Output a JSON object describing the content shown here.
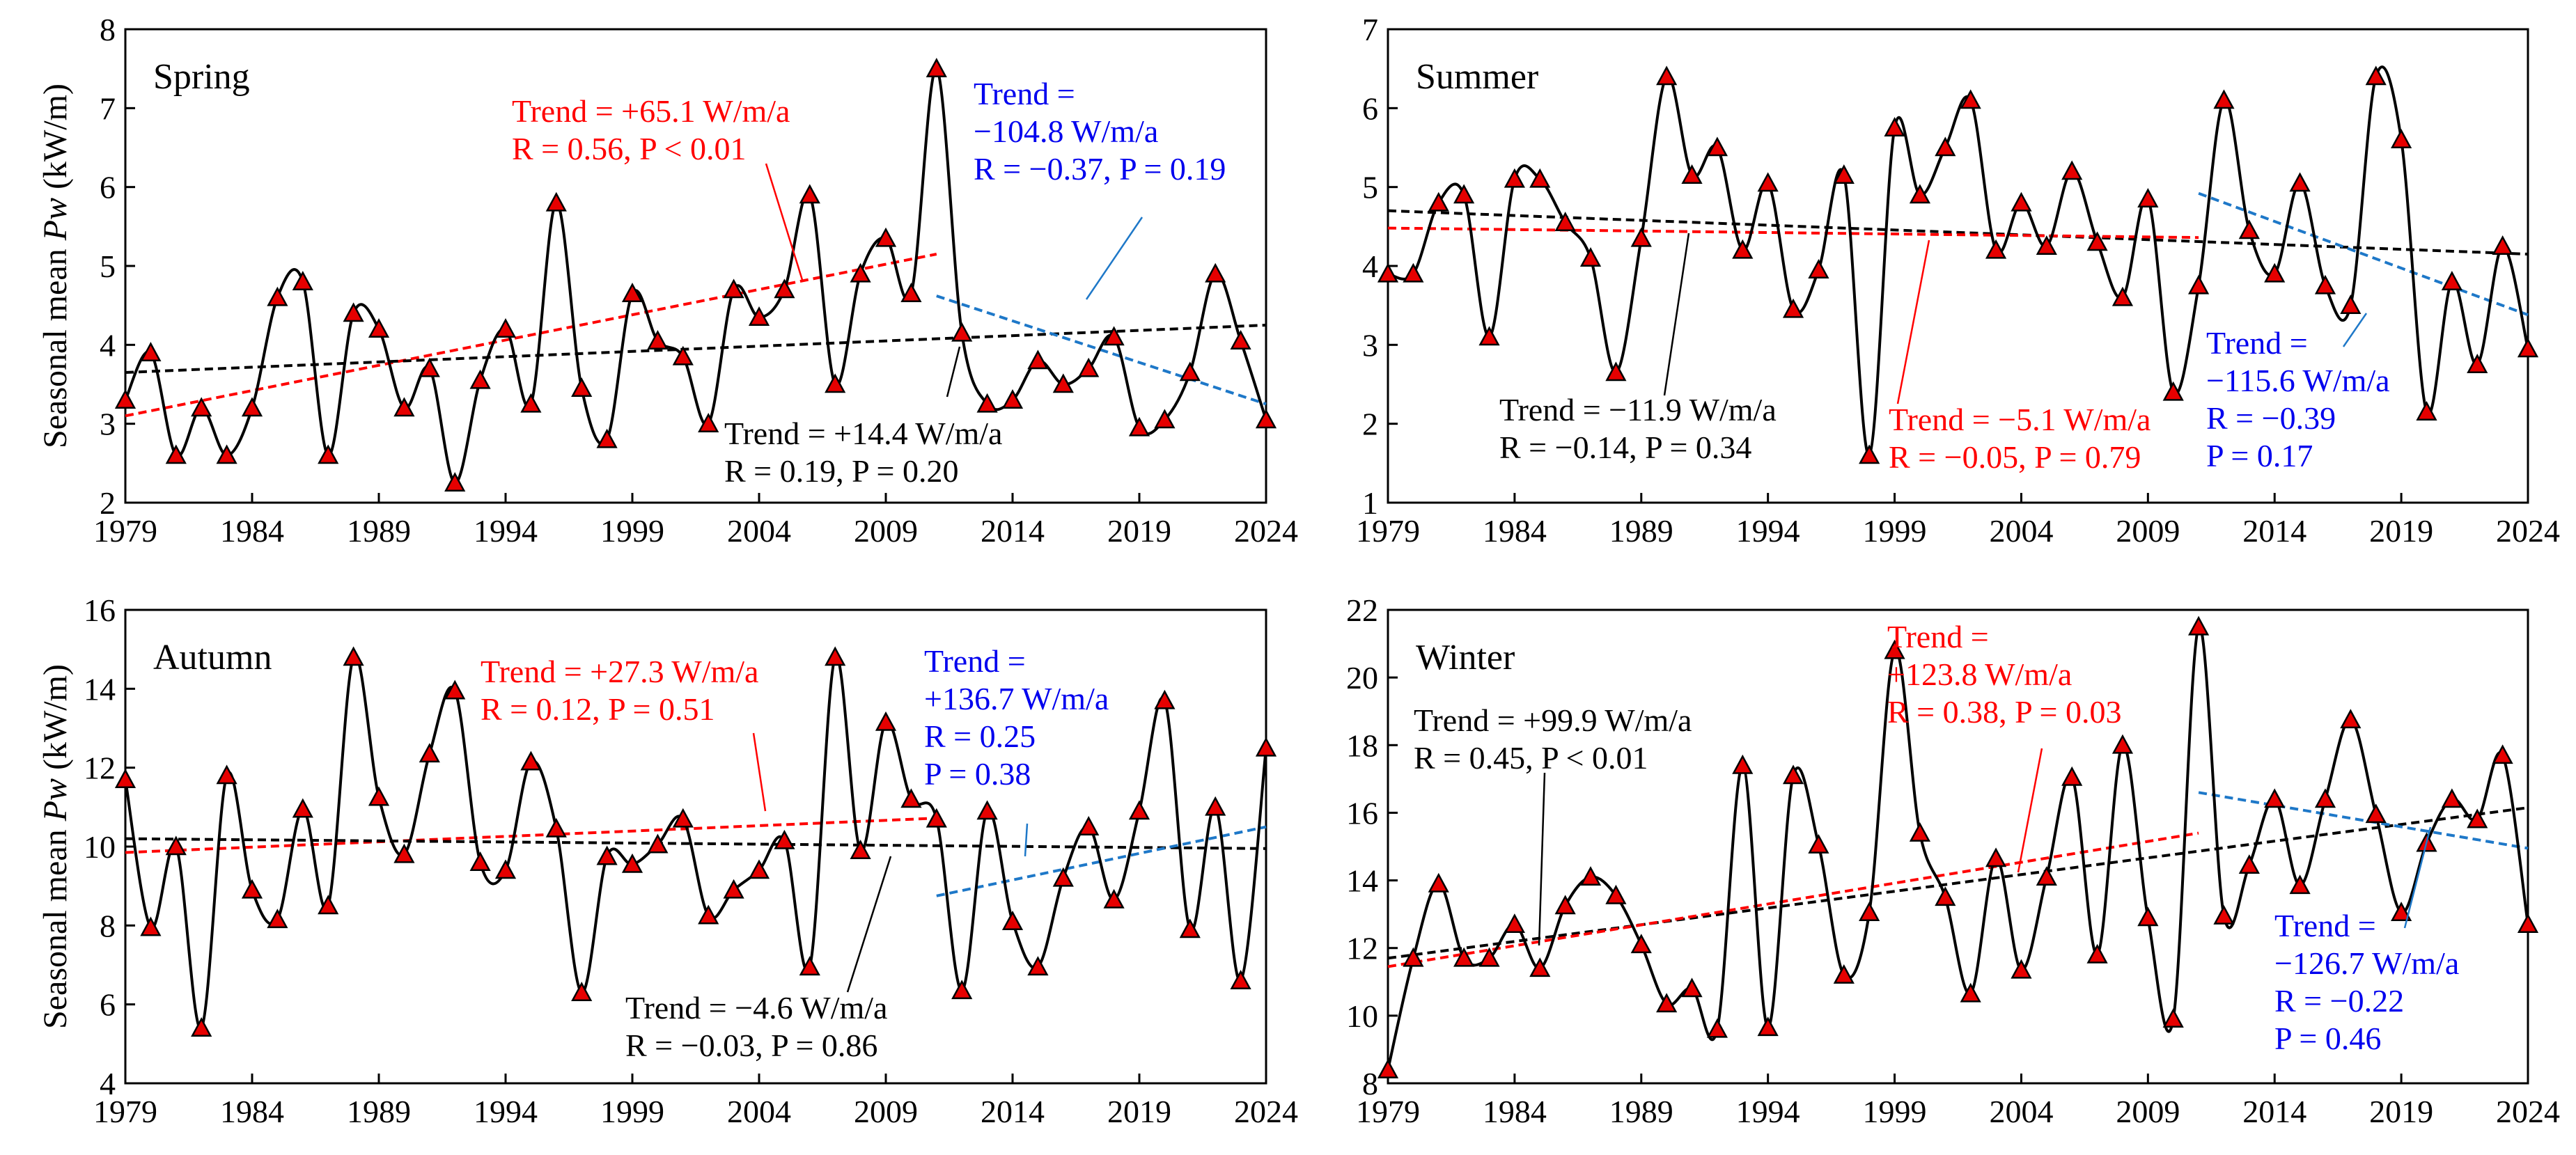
{
  "ylabel_prefix": "Seasonal mean ",
  "ylabel_symbol": "Pw",
  "ylabel_unit": " (kW/m)",
  "colors": {
    "series": "#000000",
    "marker": "#e60000",
    "red": "#ff0000",
    "blue": "#0000ee",
    "blue_line": "#1e78c8",
    "black": "#000000"
  },
  "chart_data": [
    {
      "type": "line",
      "title": "Spring",
      "x": [
        1979,
        1980,
        1981,
        1982,
        1983,
        1984,
        1985,
        1986,
        1987,
        1988,
        1989,
        1990,
        1991,
        1992,
        1993,
        1994,
        1995,
        1996,
        1997,
        1998,
        1999,
        2000,
        2001,
        2002,
        2003,
        2004,
        2005,
        2006,
        2007,
        2008,
        2009,
        2010,
        2011,
        2012,
        2013,
        2014,
        2015,
        2016,
        2017,
        2018,
        2019,
        2020,
        2021,
        2022,
        2023,
        2024
      ],
      "values": [
        3.3,
        3.9,
        2.6,
        3.2,
        2.6,
        3.2,
        4.6,
        4.8,
        2.6,
        4.4,
        4.2,
        3.2,
        3.7,
        2.25,
        3.55,
        4.2,
        3.25,
        5.8,
        3.45,
        2.8,
        4.65,
        4.05,
        3.85,
        3.0,
        4.7,
        4.35,
        4.7,
        5.9,
        3.5,
        4.9,
        5.35,
        4.65,
        7.5,
        4.15,
        3.25,
        3.3,
        3.8,
        3.5,
        3.7,
        4.1,
        2.95,
        3.05,
        3.65,
        4.9,
        4.05,
        3.05
      ],
      "xlim": [
        1979,
        2024
      ],
      "ylim": [
        2,
        8
      ],
      "xticks": [
        "1979",
        "1984",
        "1989",
        "1994",
        "1999",
        "2004",
        "2009",
        "2014",
        "2019",
        "2024"
      ],
      "yticks": [
        "2",
        "3",
        "4",
        "5",
        "6",
        "7",
        "8"
      ],
      "trends": [
        {
          "color": "red",
          "x": [
            1979,
            2011
          ],
          "y": [
            3.1,
            5.15
          ]
        },
        {
          "color": "black",
          "x": [
            1979,
            2024
          ],
          "y": [
            3.65,
            4.25
          ]
        },
        {
          "color": "blue",
          "x": [
            2011,
            2024
          ],
          "y": [
            4.62,
            3.25
          ]
        }
      ],
      "annotations": [
        {
          "color": "red",
          "lines": [
            "Trend = +65.1 W/m/a",
            "R = 0.56, P < 0.01"
          ]
        },
        {
          "color": "blue",
          "lines": [
            "Trend =",
            "−104.8 W/m/a",
            "R = −0.37, P = 0.19"
          ]
        },
        {
          "color": "black",
          "lines": [
            "Trend = +14.4 W/m/a",
            "R = 0.19, P = 0.20"
          ]
        }
      ]
    },
    {
      "type": "line",
      "title": "Summer",
      "x": [
        1979,
        1980,
        1981,
        1982,
        1983,
        1984,
        1985,
        1986,
        1987,
        1988,
        1989,
        1990,
        1991,
        1992,
        1993,
        1994,
        1995,
        1996,
        1997,
        1998,
        1999,
        2000,
        2001,
        2002,
        2003,
        2004,
        2005,
        2006,
        2007,
        2008,
        2009,
        2010,
        2011,
        2012,
        2013,
        2014,
        2015,
        2016,
        2017,
        2018,
        2019,
        2020,
        2021,
        2022,
        2023,
        2024
      ],
      "values": [
        3.9,
        3.9,
        4.8,
        4.9,
        3.1,
        5.1,
        5.1,
        4.55,
        4.1,
        2.65,
        4.35,
        6.4,
        5.15,
        5.5,
        4.2,
        5.05,
        3.45,
        3.95,
        5.15,
        1.6,
        5.75,
        4.9,
        5.5,
        6.1,
        4.2,
        4.8,
        4.25,
        5.2,
        4.3,
        3.6,
        4.85,
        2.4,
        3.75,
        6.1,
        4.45,
        3.9,
        5.05,
        3.75,
        3.5,
        6.4,
        5.6,
        2.15,
        3.8,
        2.75,
        4.25,
        2.95
      ],
      "xlim": [
        1979,
        2024
      ],
      "ylim": [
        1,
        7
      ],
      "xticks": [
        "1979",
        "1984",
        "1989",
        "1994",
        "1999",
        "2004",
        "2009",
        "2014",
        "2019",
        "2024"
      ],
      "yticks": [
        "1",
        "2",
        "3",
        "4",
        "5",
        "6",
        "7"
      ],
      "trends": [
        {
          "color": "black",
          "x": [
            1979,
            2024
          ],
          "y": [
            4.7,
            4.15
          ]
        },
        {
          "color": "red",
          "x": [
            1979,
            2011
          ],
          "y": [
            4.48,
            4.36
          ]
        },
        {
          "color": "blue",
          "x": [
            2011,
            2024
          ],
          "y": [
            4.92,
            3.38
          ]
        }
      ],
      "annotations": [
        {
          "color": "black",
          "lines": [
            "Trend = −11.9 W/m/a",
            "R = −0.14, P = 0.34"
          ]
        },
        {
          "color": "red",
          "lines": [
            "Trend = −5.1 W/m/a",
            "R = −0.05, P = 0.79"
          ]
        },
        {
          "color": "blue",
          "lines": [
            "Trend =",
            "−115.6 W/m/a",
            "R = −0.39",
            "P = 0.17"
          ]
        }
      ]
    },
    {
      "type": "line",
      "title": "Autumn",
      "x": [
        1979,
        1980,
        1981,
        1982,
        1983,
        1984,
        1985,
        1986,
        1987,
        1988,
        1989,
        1990,
        1991,
        1992,
        1993,
        1994,
        1995,
        1996,
        1997,
        1998,
        1999,
        2000,
        2001,
        2002,
        2003,
        2004,
        2005,
        2006,
        2007,
        2008,
        2009,
        2010,
        2011,
        2012,
        2013,
        2014,
        2015,
        2016,
        2017,
        2018,
        2019,
        2020,
        2021,
        2022,
        2023,
        2024
      ],
      "values": [
        11.7,
        7.95,
        10.0,
        5.4,
        11.8,
        8.9,
        8.15,
        10.95,
        8.5,
        14.8,
        11.25,
        9.8,
        12.35,
        13.95,
        9.6,
        9.4,
        12.15,
        10.45,
        6.3,
        9.75,
        9.55,
        10.05,
        10.7,
        8.25,
        8.9,
        9.4,
        10.15,
        6.95,
        14.8,
        9.9,
        13.15,
        11.2,
        10.7,
        6.35,
        10.9,
        8.1,
        6.95,
        9.2,
        10.5,
        8.65,
        10.9,
        13.7,
        7.9,
        11.0,
        6.6,
        12.5
      ],
      "xlim": [
        1979,
        2024
      ],
      "ylim": [
        4,
        16
      ],
      "xticks": [
        "1979",
        "1984",
        "1989",
        "1994",
        "1999",
        "2004",
        "2009",
        "2014",
        "2019",
        "2024"
      ],
      "yticks": [
        "4",
        "6",
        "8",
        "10",
        "12",
        "14",
        "16"
      ],
      "trends": [
        {
          "color": "red",
          "x": [
            1979,
            2011
          ],
          "y": [
            9.85,
            10.72
          ]
        },
        {
          "color": "black",
          "x": [
            1979,
            2024
          ],
          "y": [
            10.2,
            9.95
          ]
        },
        {
          "color": "blue",
          "x": [
            2011,
            2024
          ],
          "y": [
            8.75,
            10.5
          ]
        }
      ],
      "annotations": [
        {
          "color": "red",
          "lines": [
            "Trend = +27.3 W/m/a",
            "R = 0.12, P = 0.51"
          ]
        },
        {
          "color": "blue",
          "lines": [
            "Trend =",
            "+136.7 W/m/a",
            "R = 0.25",
            "P = 0.38"
          ]
        },
        {
          "color": "black",
          "lines": [
            "Trend = −4.6 W/m/a",
            "R = −0.03, P = 0.86"
          ]
        }
      ]
    },
    {
      "type": "line",
      "title": "Winter",
      "x": [
        1979,
        1980,
        1981,
        1982,
        1983,
        1984,
        1985,
        1986,
        1987,
        1988,
        1989,
        1990,
        1991,
        1992,
        1993,
        1994,
        1995,
        1996,
        1997,
        1998,
        1999,
        2000,
        2001,
        2002,
        2003,
        2004,
        2005,
        2006,
        2007,
        2008,
        2009,
        2010,
        2011,
        2012,
        2013,
        2014,
        2015,
        2016,
        2017,
        2018,
        2019,
        2020,
        2021,
        2022,
        2023,
        2024
      ],
      "values": [
        8.4,
        11.7,
        13.9,
        11.7,
        11.7,
        12.7,
        11.4,
        13.25,
        14.1,
        13.55,
        12.1,
        10.35,
        10.8,
        9.6,
        17.4,
        9.65,
        17.1,
        15.05,
        11.2,
        13.05,
        20.8,
        15.4,
        13.5,
        10.65,
        14.65,
        11.35,
        14.1,
        17.05,
        11.8,
        18.0,
        12.9,
        9.9,
        21.5,
        12.95,
        14.45,
        16.4,
        13.85,
        16.4,
        18.75,
        15.95,
        13.05,
        15.1,
        16.4,
        15.8,
        17.7,
        12.7
      ],
      "xlim": [
        1979,
        2024
      ],
      "ylim": [
        8,
        22
      ],
      "xticks": [
        "1979",
        "1984",
        "1989",
        "1994",
        "1999",
        "2004",
        "2009",
        "2014",
        "2019",
        "2024"
      ],
      "yticks": [
        "8",
        "10",
        "12",
        "14",
        "16",
        "18",
        "20",
        "22"
      ],
      "trends": [
        {
          "color": "black",
          "x": [
            1979,
            2024
          ],
          "y": [
            11.7,
            16.15
          ]
        },
        {
          "color": "red",
          "x": [
            1979,
            2011
          ],
          "y": [
            11.45,
            15.4
          ]
        },
        {
          "color": "blue",
          "x": [
            2011,
            2024
          ],
          "y": [
            16.6,
            14.95
          ]
        }
      ],
      "annotations": [
        {
          "color": "black",
          "lines": [
            "Trend = +99.9 W/m/a",
            "R = 0.45, P < 0.01"
          ]
        },
        {
          "color": "red",
          "lines": [
            "Trend =",
            "+123.8 W/m/a",
            "R = 0.38, P = 0.03"
          ]
        },
        {
          "color": "blue",
          "lines": [
            "Trend =",
            "−126.7 W/m/a",
            "R = −0.22",
            "P = 0.46"
          ]
        }
      ]
    }
  ]
}
